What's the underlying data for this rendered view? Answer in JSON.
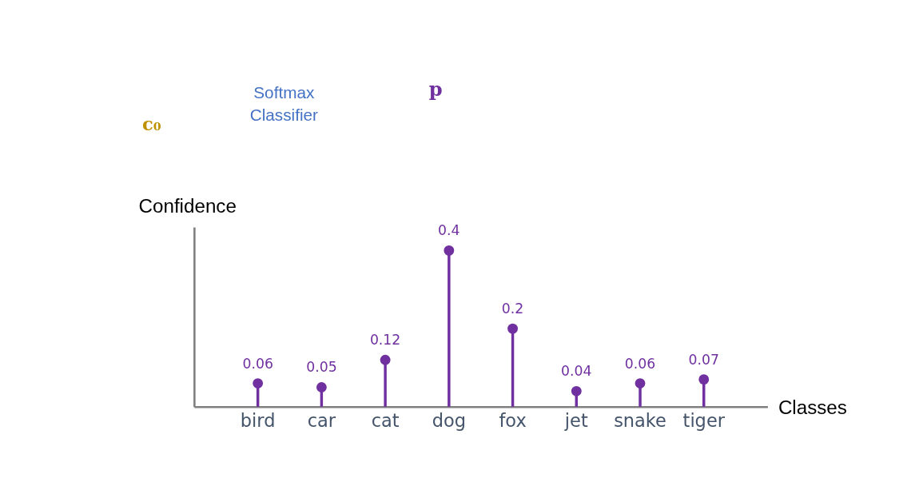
{
  "chart_data": {
    "type": "lollipop",
    "xlabel": "Classes",
    "ylabel": "Confidence",
    "categories": [
      "bird",
      "car",
      "cat",
      "dog",
      "fox",
      "jet",
      "snake",
      "tiger"
    ],
    "values": [
      0.06,
      0.05,
      0.12,
      0.4,
      0.2,
      0.04,
      0.06,
      0.07
    ],
    "color": "#7030a0",
    "data_labels": true,
    "marker": "circle",
    "grid": false,
    "legend": false,
    "annotations": [
      "Softmax Classifier",
      "c₀",
      "p"
    ]
  }
}
